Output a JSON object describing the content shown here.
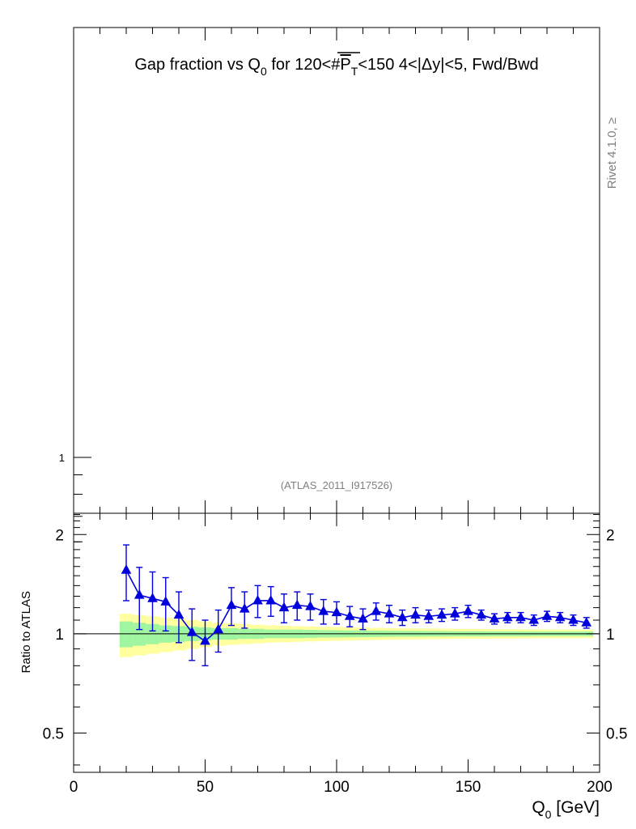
{
  "chart_data": [
    {
      "type": "scatter",
      "panel": "main",
      "title": "Gap fraction vs Q",
      "title_sub": "0",
      "title_rest": " for 120<#",
      "title_pt": "P",
      "title_pt_sub": "T",
      "title_tail": "<150  4<|Δy|<5, Fwd/Bwd",
      "watermark": "(ATLAS_2011_I917526)",
      "side_label": "Rivet 4.1.0, ≥",
      "yscale": "log",
      "y_tick_labels": [
        "1"
      ],
      "xlim": [
        0,
        200
      ]
    },
    {
      "type": "scatter",
      "panel": "ratio",
      "ylabel": "Ratio to ATLAS",
      "xlabel_main": "Q",
      "xlabel_sub": "0",
      "xlabel_unit": " [GeV]",
      "xlim": [
        0,
        200
      ],
      "ylim": [
        0.38,
        2.32
      ],
      "x_ticks": [
        0,
        50,
        100,
        150,
        200
      ],
      "y_ticks": [
        0.5,
        1,
        2
      ],
      "y_tick_labels": [
        "0.5",
        "1",
        "2"
      ],
      "reference_line": 1,
      "series": [
        {
          "name": "",
          "color": "#0000dd",
          "marker": "triangle",
          "x": [
            20,
            25,
            30,
            35,
            40,
            45,
            50,
            55,
            60,
            65,
            70,
            75,
            80,
            85,
            90,
            95,
            100,
            105,
            110,
            115,
            120,
            125,
            130,
            135,
            140,
            145,
            150,
            155,
            160,
            165,
            170,
            175,
            180,
            185,
            190,
            195
          ],
          "y": [
            1.56,
            1.31,
            1.28,
            1.25,
            1.14,
            1.01,
            0.95,
            1.03,
            1.22,
            1.19,
            1.26,
            1.26,
            1.2,
            1.22,
            1.21,
            1.17,
            1.16,
            1.13,
            1.11,
            1.17,
            1.15,
            1.12,
            1.14,
            1.13,
            1.14,
            1.15,
            1.17,
            1.14,
            1.11,
            1.12,
            1.12,
            1.1,
            1.13,
            1.12,
            1.1,
            1.08
          ],
          "yerr": [
            0.3,
            0.28,
            0.26,
            0.23,
            0.2,
            0.18,
            0.15,
            0.15,
            0.16,
            0.15,
            0.14,
            0.13,
            0.12,
            0.12,
            0.11,
            0.1,
            0.09,
            0.08,
            0.08,
            0.07,
            0.07,
            0.06,
            0.06,
            0.05,
            0.05,
            0.05,
            0.05,
            0.04,
            0.04,
            0.04,
            0.04,
            0.04,
            0.04,
            0.04,
            0.04,
            0.04
          ]
        }
      ],
      "bands": {
        "x_edges": [
          17.5,
          22.5,
          27.5,
          32.5,
          37.5,
          42.5,
          47.5,
          52.5,
          57.5,
          62.5,
          67.5,
          72.5,
          77.5,
          82.5,
          87.5,
          92.5,
          97.5,
          102.5,
          107.5,
          112.5,
          117.5,
          122.5,
          127.5,
          132.5,
          137.5,
          142.5,
          147.5,
          152.5,
          157.5,
          162.5,
          167.5,
          172.5,
          177.5,
          182.5,
          187.5,
          192.5,
          197.5
        ],
        "stat_halfwidth": [
          0.09,
          0.08,
          0.07,
          0.06,
          0.055,
          0.05,
          0.045,
          0.04,
          0.04,
          0.035,
          0.035,
          0.03,
          0.03,
          0.03,
          0.028,
          0.026,
          0.025,
          0.024,
          0.023,
          0.022,
          0.021,
          0.02,
          0.02,
          0.019,
          0.019,
          0.018,
          0.018,
          0.018,
          0.017,
          0.017,
          0.017,
          0.016,
          0.016,
          0.016,
          0.016,
          0.016
        ],
        "total_halfwidth": [
          0.15,
          0.14,
          0.13,
          0.12,
          0.11,
          0.1,
          0.09,
          0.08,
          0.075,
          0.07,
          0.065,
          0.06,
          0.058,
          0.055,
          0.052,
          0.05,
          0.048,
          0.046,
          0.044,
          0.042,
          0.04,
          0.039,
          0.038,
          0.037,
          0.036,
          0.035,
          0.035,
          0.034,
          0.033,
          0.033,
          0.032,
          0.032,
          0.031,
          0.031,
          0.031,
          0.03
        ],
        "stat_color": "#a0f5a0",
        "total_color": "#ffffa0"
      }
    }
  ]
}
